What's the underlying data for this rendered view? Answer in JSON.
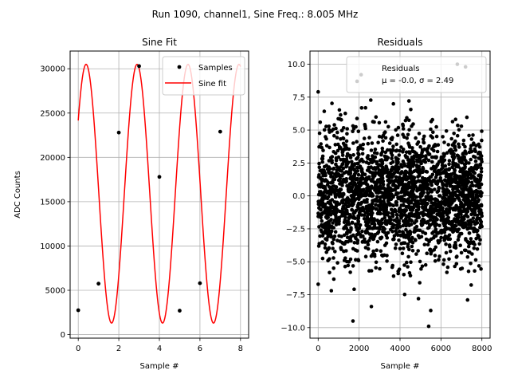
{
  "figure": {
    "suptitle": "Run 1090, channel1, Sine Freq.: 8.005 MHz"
  },
  "chart_data": [
    {
      "type": "line",
      "title": "Sine Fit",
      "xlabel": "Sample #",
      "ylabel": "ADC Counts",
      "xlim": [
        -0.4,
        8.4
      ],
      "ylim": [
        -400,
        32000
      ],
      "xticks": [
        0,
        2,
        4,
        6,
        8
      ],
      "yticks": [
        0,
        5000,
        10000,
        15000,
        20000,
        25000,
        30000
      ],
      "xtick_labels": [
        "0",
        "2",
        "4",
        "6",
        "8"
      ],
      "ytick_labels": [
        "0",
        "5000",
        "10000",
        "15000",
        "20000",
        "25000",
        "30000"
      ],
      "grid": true,
      "legend_position": "top-right",
      "series": [
        {
          "name": "Samples",
          "kind": "scatter",
          "color": "#000000",
          "x": [
            0,
            1,
            2,
            3,
            4,
            5,
            6,
            7
          ],
          "y": [
            2750,
            5750,
            22800,
            30300,
            17800,
            2700,
            5800,
            22900
          ]
        },
        {
          "name": "Sine fit",
          "kind": "line",
          "color": "#ff0000",
          "model": {
            "offset": 15900,
            "amplitude": 14600,
            "freq_cycles_per_sample": 0.398,
            "peak_at": 2.9
          },
          "x_range": [
            0,
            8
          ]
        }
      ]
    },
    {
      "type": "scatter",
      "title": "Residuals",
      "xlabel": "Sample #",
      "ylabel": "",
      "xlim": [
        -400,
        8400
      ],
      "ylim": [
        -10.8,
        11
      ],
      "xticks": [
        0,
        2000,
        4000,
        6000,
        8000
      ],
      "yticks": [
        -10,
        -7.5,
        -5,
        -2.5,
        0,
        2.5,
        5,
        7.5,
        10
      ],
      "xtick_labels": [
        "0",
        "2000",
        "4000",
        "6000",
        "8000"
      ],
      "ytick_labels": [
        "−10.0",
        "−7.5",
        "−5.0",
        "−2.5",
        "0.0",
        "2.5",
        "5.0",
        "7.5",
        "10.0"
      ],
      "grid": true,
      "legend_position": "top-right",
      "legend_label": "Residuals",
      "legend_stats": "μ = -0.0, σ = 2.49",
      "series": [
        {
          "name": "Residuals",
          "color": "#000000",
          "n_points": 8000,
          "x_range": [
            0,
            8000
          ],
          "mean": 0.0,
          "std": 2.49,
          "notable_points": [
            {
              "x": 1700,
              "y": -9.5
            },
            {
              "x": 5400,
              "y": -9.9
            },
            {
              "x": 2600,
              "y": -8.4
            },
            {
              "x": 5500,
              "y": -8.7
            },
            {
              "x": 7300,
              "y": -7.9
            },
            {
              "x": 6800,
              "y": 10.0
            },
            {
              "x": 2100,
              "y": 9.2
            },
            {
              "x": 1900,
              "y": 8.7
            },
            {
              "x": 7200,
              "y": 9.8
            },
            {
              "x": 0,
              "y": 7.9
            },
            {
              "x": 4900,
              "y": -7.8
            }
          ]
        }
      ]
    }
  ]
}
